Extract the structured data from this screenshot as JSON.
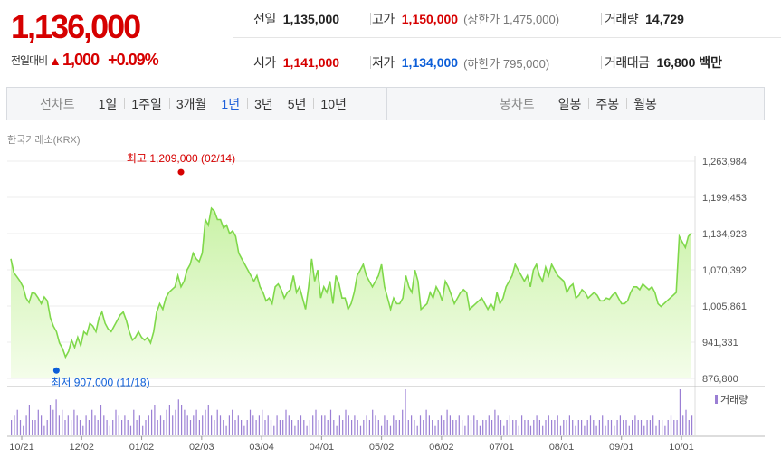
{
  "quote": {
    "current_price": "1,136,000",
    "change_label": "전일대비",
    "change_arrow": "▲",
    "change_value": "1,000",
    "change_pct": "+0.09%"
  },
  "summary": {
    "prev_close_label": "전일",
    "prev_close": "1,135,000",
    "high_label": "고가",
    "high": "1,150,000",
    "upper_limit_label": "(상한가 1,475,000)",
    "volume_label": "거래량",
    "volume": "14,729",
    "open_label": "시가",
    "open": "1,141,000",
    "low_label": "저가",
    "low": "1,134,000",
    "lower_limit_label": "(하한가 795,000)",
    "turnover_label": "거래대금",
    "turnover": "16,800 백만"
  },
  "toolbar": {
    "line_chart_label": "선차트",
    "line_periods": [
      "1일",
      "1주일",
      "3개월",
      "1년",
      "3년",
      "5년",
      "10년"
    ],
    "active_period": "1년",
    "candle_chart_label": "봉차트",
    "candle_periods": [
      "일봉",
      "주봉",
      "월봉"
    ]
  },
  "exchange_label": "한국거래소(KRX)",
  "colors": {
    "up": "#d60000",
    "down": "#0c5ed8",
    "line": "#7fd84a",
    "area_top": "#c9f2a6",
    "area_bottom": "#f4fdea",
    "volume_bar": "#9b7fd4",
    "active_tab": "#1e5fd9"
  },
  "chart_data": {
    "type": "area",
    "y_ticks": [
      "1,263,984",
      "1,199,453",
      "1,134,923",
      "1,070,392",
      "1,005,861",
      "941,331",
      "876,800"
    ],
    "ylim": [
      876800,
      1263984
    ],
    "x_ticks": [
      "10/21",
      "12/02",
      "01/02",
      "02/03",
      "03/04",
      "04/01",
      "05/02",
      "06/02",
      "07/01",
      "08/01",
      "09/01",
      "10/01"
    ],
    "annotations": {
      "high": {
        "text": "최고 1,209,000 (02/14)",
        "value": 1209000,
        "index": 56
      },
      "low": {
        "text": "최저 907,000 (11/18)",
        "value": 907000,
        "index": 15
      }
    },
    "legend": "거래량",
    "series": [
      {
        "values": [
          1090000,
          1065000,
          1058000,
          1050000,
          1040000,
          1020000,
          1012000,
          1030000,
          1028000,
          1020000,
          1010000,
          1022000,
          1015000,
          985000,
          970000,
          960000,
          940000,
          930000,
          915000,
          925000,
          945000,
          932000,
          950000,
          935000,
          960000,
          955000,
          975000,
          970000,
          960000,
          985000,
          995000,
          975000,
          965000,
          960000,
          970000,
          980000,
          990000,
          995000,
          980000,
          960000,
          945000,
          950000,
          960000,
          950000,
          945000,
          950000,
          940000,
          960000,
          995000,
          1010000,
          1000000,
          1020000,
          1030000,
          1035000,
          1040000,
          1060000,
          1040000,
          1050000,
          1070000,
          1080000,
          1100000,
          1090000,
          1085000,
          1100000,
          1160000,
          1150000,
          1180000,
          1175000,
          1160000,
          1160000,
          1145000,
          1150000,
          1135000,
          1140000,
          1130000,
          1100000,
          1090000,
          1080000,
          1070000,
          1060000,
          1050000,
          1060000,
          1040000,
          1030000,
          1015000,
          1020000,
          1010000,
          1040000,
          1045000,
          1035000,
          1020000,
          1030000,
          1035000,
          1060000,
          1030000,
          1040000,
          1020000,
          1000000,
          1040000,
          1090000,
          1050000,
          1070000,
          1020000,
          1040000,
          1030000,
          1050000,
          1010000,
          1060000,
          1045000,
          1020000,
          1020000,
          1000000,
          1010000,
          1030000,
          1060000,
          1070000,
          1080000,
          1060000,
          1050000,
          1040000,
          1050000,
          1060000,
          1080000,
          1040000,
          1020000,
          1000000,
          1020000,
          1010000,
          1010000,
          1020000,
          1060000,
          1040000,
          1030000,
          1070000,
          1050000,
          1000000,
          1005000,
          1010000,
          1030000,
          1020000,
          1040000,
          1030000,
          1015000,
          1050000,
          1040000,
          1025000,
          1010000,
          1020000,
          1030000,
          1035000,
          1030000,
          1000000,
          1005000,
          1010000,
          1015000,
          1020000,
          1010000,
          1000000,
          1010000,
          1000000,
          1030000,
          1010000,
          1020000,
          1040000,
          1050000,
          1060000,
          1080000,
          1070000,
          1060000,
          1050000,
          1060000,
          1040000,
          1070000,
          1080000,
          1060000,
          1050000,
          1075000,
          1060000,
          1080000,
          1070000,
          1060000,
          1055000,
          1050000,
          1030000,
          1040000,
          1045000,
          1020000,
          1025000,
          1035000,
          1030000,
          1020000,
          1025000,
          1030000,
          1025000,
          1015000,
          1015000,
          1020000,
          1018000,
          1025000,
          1030000,
          1020000,
          1010000,
          1010000,
          1015000,
          1030000,
          1040000,
          1040000,
          1035000,
          1045000,
          1040000,
          1035000,
          1040000,
          1030000,
          1010000,
          1005000,
          1010000,
          1015000,
          1020000,
          1025000,
          1030000,
          1130000,
          1120000,
          1110000,
          1130000,
          1136000
        ]
      }
    ],
    "volume": [
      3,
      4,
      5,
      3,
      2,
      4,
      6,
      3,
      3,
      5,
      4,
      2,
      3,
      6,
      5,
      7,
      4,
      5,
      3,
      4,
      3,
      5,
      4,
      3,
      2,
      4,
      3,
      5,
      4,
      3,
      6,
      4,
      3,
      2,
      3,
      5,
      4,
      3,
      4,
      3,
      2,
      5,
      3,
      4,
      2,
      3,
      4,
      5,
      6,
      3,
      4,
      3,
      5,
      6,
      4,
      5,
      7,
      6,
      5,
      4,
      3,
      4,
      5,
      3,
      4,
      5,
      6,
      4,
      3,
      5,
      4,
      3,
      2,
      4,
      5,
      3,
      4,
      3,
      2,
      3,
      5,
      4,
      3,
      4,
      5,
      3,
      4,
      3,
      2,
      4,
      3,
      3,
      5,
      4,
      3,
      2,
      3,
      4,
      3,
      2,
      3,
      4,
      5,
      3,
      4,
      4,
      3,
      5,
      3,
      2,
      4,
      3,
      5,
      4,
      3,
      4,
      3,
      2,
      3,
      4,
      3,
      5,
      4,
      3,
      2,
      4,
      3,
      2,
      4,
      3,
      3,
      5,
      9,
      3,
      4,
      3,
      2,
      4,
      3,
      5,
      4,
      3,
      2,
      3,
      4,
      3,
      5,
      4,
      3,
      3,
      4,
      3,
      2,
      4,
      3,
      4,
      3,
      2,
      3,
      3,
      4,
      3,
      5,
      4,
      3,
      2,
      3,
      4,
      3,
      3,
      2,
      4,
      3,
      3,
      2,
      3,
      4,
      3,
      2,
      3,
      4,
      3,
      3,
      4,
      2,
      3,
      3,
      4,
      3,
      2,
      3,
      3,
      2,
      3,
      4,
      3,
      2,
      3,
      4,
      2,
      3,
      3,
      2,
      3,
      4,
      3,
      3,
      2,
      3,
      4,
      3,
      3,
      2,
      3,
      3,
      4,
      2,
      3,
      3,
      2,
      3,
      4,
      3,
      3,
      9,
      4,
      5,
      3,
      4
    ]
  }
}
